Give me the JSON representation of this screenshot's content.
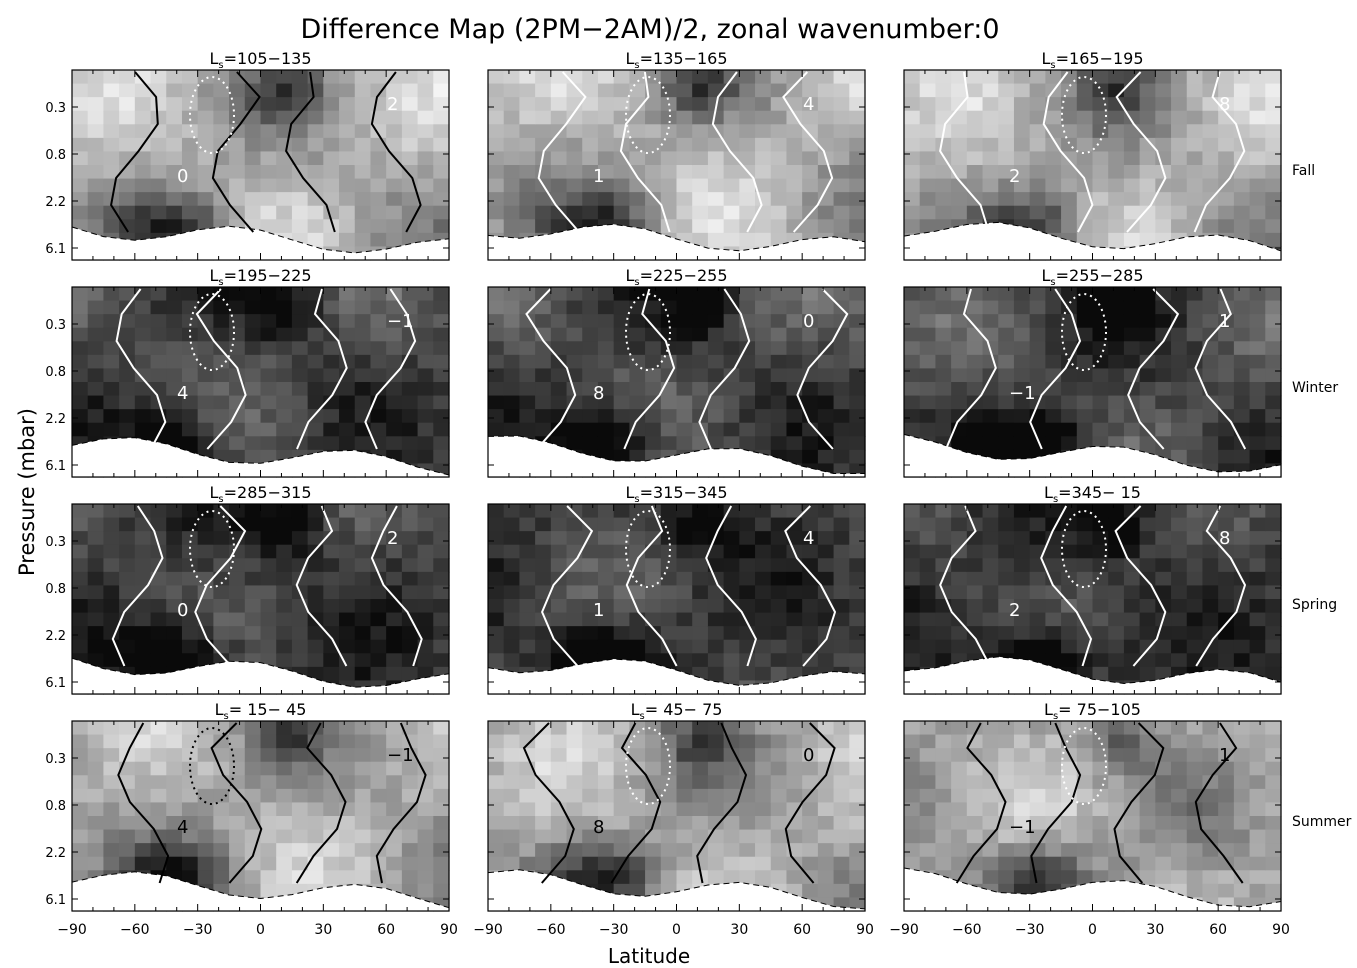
{
  "chart_data": {
    "type": "heatmap",
    "title": "Difference Map (2PM−2AM)/2, zonal wavenumber:0",
    "xlabel": "Latitude",
    "ylabel": "Pressure (mbar)",
    "xlim": [
      -90,
      90
    ],
    "x_ticks": [
      "−90",
      "−60",
      "−30",
      "0",
      "30",
      "60",
      "90"
    ],
    "y_ticks": [
      "0.3",
      "0.8",
      "2.2",
      "6.1"
    ],
    "y_scale": "log",
    "seasons": [
      "Fall",
      "Winter",
      "Spring",
      "Summer"
    ],
    "panels": [
      {
        "label": "=105−135",
        "season": "Fall"
      },
      {
        "label": "=135−165",
        "season": "Fall"
      },
      {
        "label": "=165−195",
        "season": "Fall"
      },
      {
        "label": "=195−225",
        "season": "Winter"
      },
      {
        "label": "=225−255",
        "season": "Winter"
      },
      {
        "label": "=255−285",
        "season": "Winter"
      },
      {
        "label": "=285−315",
        "season": "Spring"
      },
      {
        "label": "=315−345",
        "season": "Spring"
      },
      {
        "label": "=345− 15",
        "season": "Spring"
      },
      {
        "label": "= 15− 45",
        "season": "Summer"
      },
      {
        "label": "= 45− 75",
        "season": "Summer"
      },
      {
        "label": "= 75−105",
        "season": "Summer"
      }
    ],
    "ls_prefix": "L",
    "ls_sub": "s",
    "contour_levels_labeled": [
      "−1",
      "0",
      "1",
      "2",
      "4",
      "8"
    ]
  }
}
